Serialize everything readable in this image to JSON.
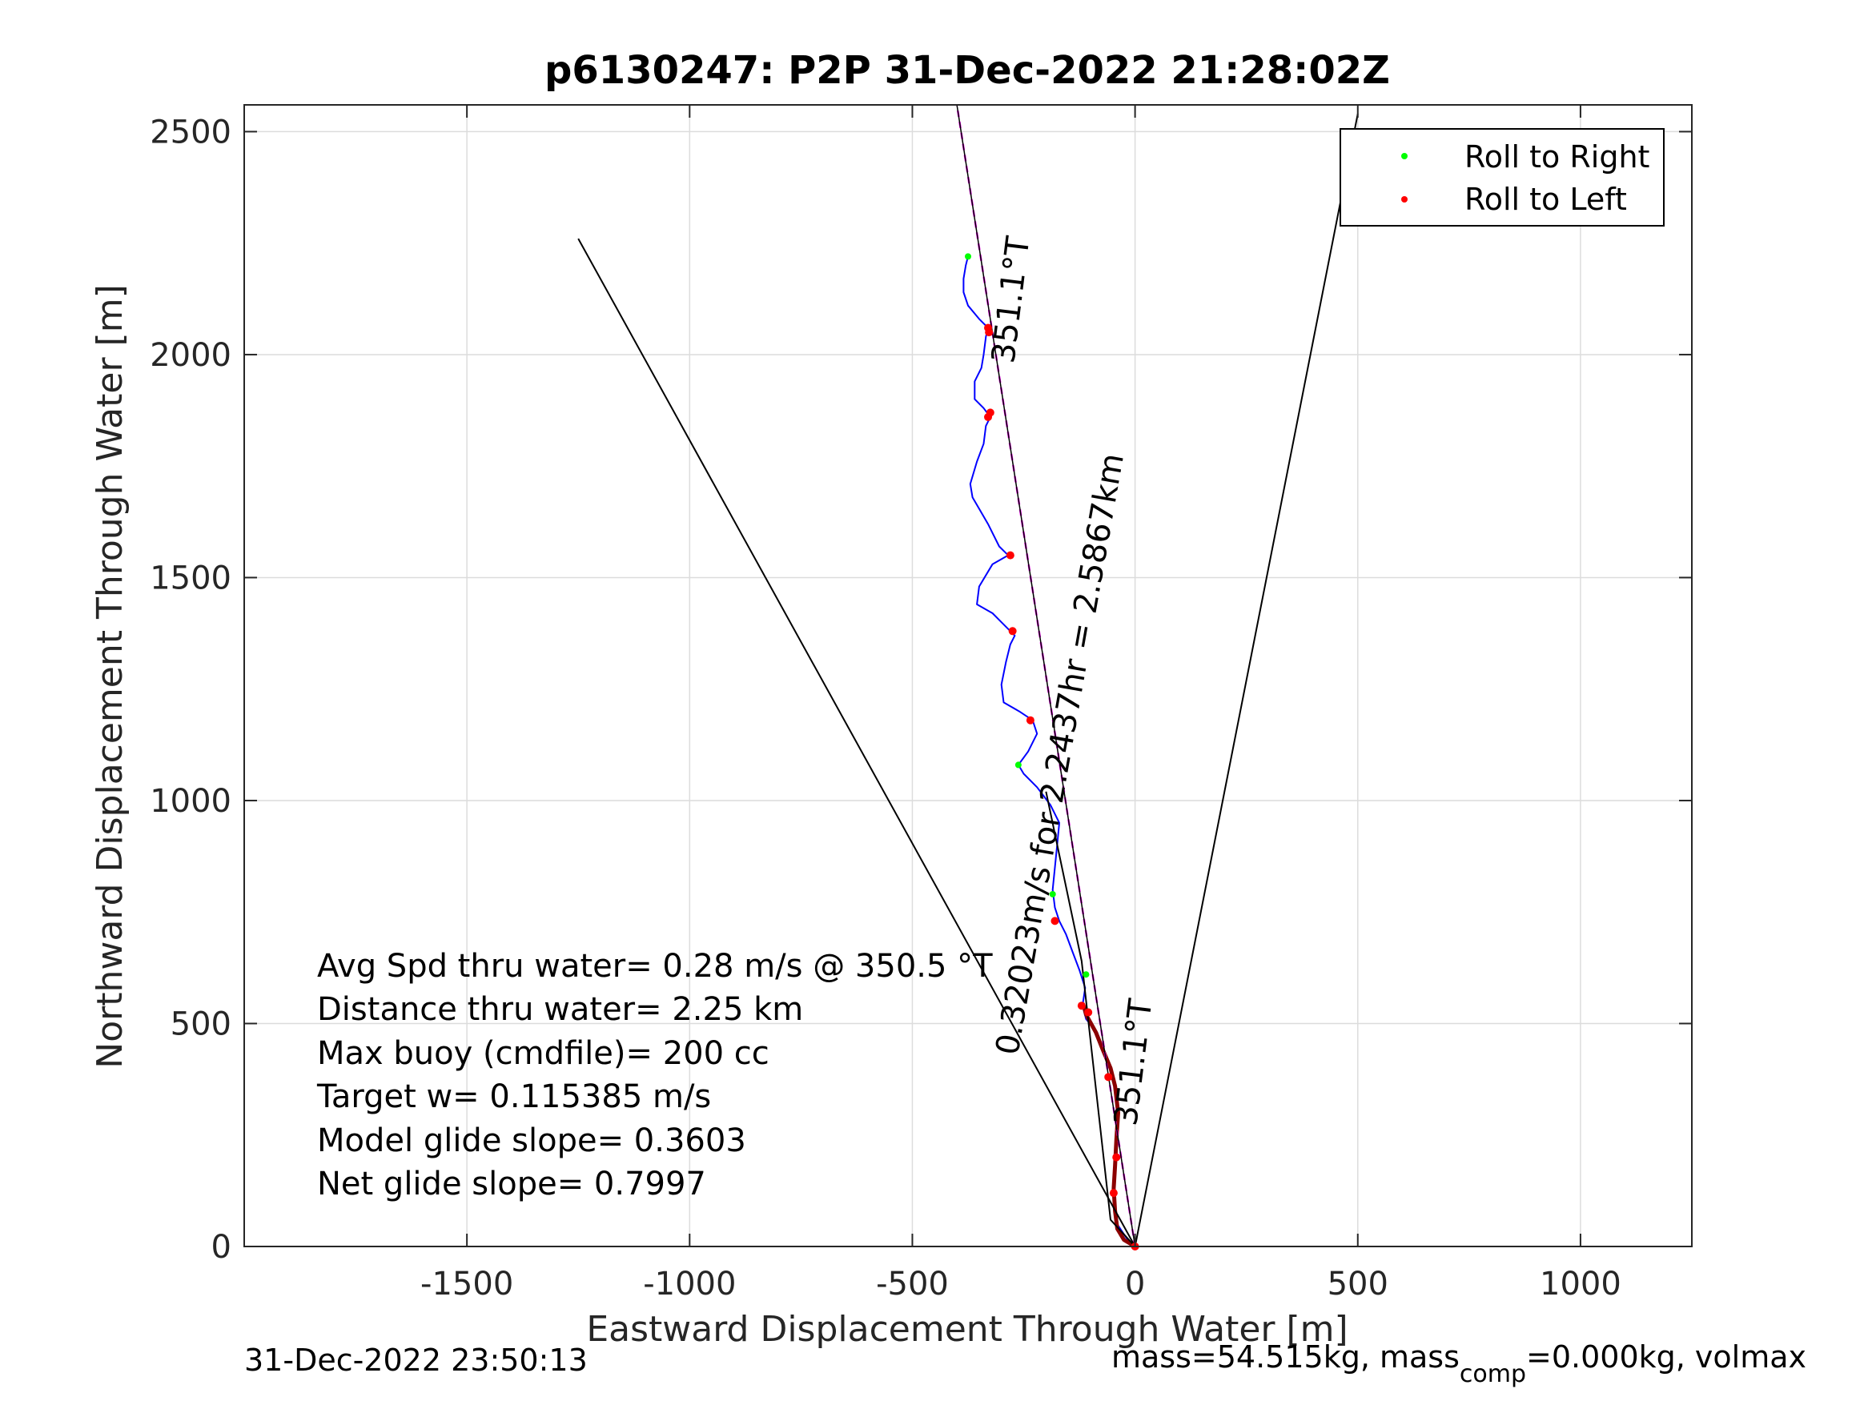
{
  "chart_data": {
    "type": "line",
    "title": "p6130247: P2P 31-Dec-2022 21:28:02Z",
    "xlabel": "Eastward Displacement Through Water [m]",
    "ylabel": "Northward Displacement Through Water [m]",
    "xlim": [
      -2000,
      1250
    ],
    "ylim": [
      0,
      2560
    ],
    "xticks": [
      -1500,
      -1000,
      -500,
      0,
      500,
      1000
    ],
    "yticks": [
      0,
      500,
      1000,
      1500,
      2000,
      2500
    ],
    "grid": true,
    "legend": {
      "placement": "top-right",
      "entries": [
        {
          "label": "Roll to Right",
          "color": "#00ff00"
        },
        {
          "label": "Roll to Left",
          "color": "#ff0000"
        }
      ]
    },
    "series": [
      {
        "name": "track",
        "color": "#0000ff",
        "points": [
          [
            0,
            0
          ],
          [
            -20,
            20
          ],
          [
            -40,
            50
          ],
          [
            -45,
            90
          ],
          [
            -48,
            140
          ],
          [
            -45,
            190
          ],
          [
            -42,
            240
          ],
          [
            -40,
            300
          ],
          [
            -45,
            360
          ],
          [
            -55,
            400
          ],
          [
            -70,
            440
          ],
          [
            -85,
            480
          ],
          [
            -110,
            510
          ],
          [
            -118,
            540
          ],
          [
            -112,
            580
          ],
          [
            -125,
            620
          ],
          [
            -140,
            660
          ],
          [
            -155,
            700
          ],
          [
            -170,
            730
          ],
          [
            -180,
            760
          ],
          [
            -185,
            800
          ],
          [
            -180,
            850
          ],
          [
            -175,
            900
          ],
          [
            -170,
            950
          ],
          [
            -190,
            990
          ],
          [
            -205,
            1010
          ],
          [
            -220,
            1030
          ],
          [
            -250,
            1060
          ],
          [
            -262,
            1080
          ],
          [
            -240,
            1110
          ],
          [
            -220,
            1150
          ],
          [
            -230,
            1180
          ],
          [
            -260,
            1200
          ],
          [
            -295,
            1220
          ],
          [
            -300,
            1260
          ],
          [
            -290,
            1310
          ],
          [
            -280,
            1350
          ],
          [
            -270,
            1370
          ],
          [
            -300,
            1400
          ],
          [
            -320,
            1420
          ],
          [
            -355,
            1440
          ],
          [
            -350,
            1480
          ],
          [
            -320,
            1530
          ],
          [
            -285,
            1550
          ],
          [
            -305,
            1570
          ],
          [
            -330,
            1620
          ],
          [
            -365,
            1680
          ],
          [
            -370,
            1710
          ],
          [
            -355,
            1760
          ],
          [
            -340,
            1800
          ],
          [
            -335,
            1840
          ],
          [
            -325,
            1860
          ],
          [
            -340,
            1880
          ],
          [
            -360,
            1900
          ],
          [
            -360,
            1940
          ],
          [
            -345,
            1970
          ],
          [
            -340,
            2000
          ],
          [
            -335,
            2040
          ],
          [
            -330,
            2060
          ],
          [
            -350,
            2080
          ],
          [
            -375,
            2110
          ],
          [
            -385,
            2140
          ],
          [
            -385,
            2170
          ],
          [
            -380,
            2200
          ],
          [
            -375,
            2220
          ]
        ]
      },
      {
        "name": "heavy-track",
        "color": "#8b0000",
        "points": [
          [
            0,
            0
          ],
          [
            -25,
            15
          ],
          [
            -40,
            40
          ],
          [
            -45,
            80
          ],
          [
            -48,
            130
          ],
          [
            -45,
            180
          ],
          [
            -42,
            240
          ],
          [
            -38,
            300
          ],
          [
            -45,
            360
          ],
          [
            -55,
            400
          ],
          [
            -72,
            440
          ],
          [
            -88,
            480
          ],
          [
            -110,
            520
          ],
          [
            -115,
            540
          ]
        ]
      },
      {
        "name": "heading-line",
        "color": "#ff00ff",
        "points": [
          [
            0,
            0
          ],
          [
            -400,
            2560
          ]
        ]
      },
      {
        "name": "bearing-line-1",
        "color": "#000000",
        "points": [
          [
            0,
            0
          ],
          [
            -400,
            2560
          ]
        ]
      },
      {
        "name": "cone-left",
        "color": "#000000",
        "points": [
          [
            0,
            0
          ],
          [
            -1250,
            2260
          ]
        ]
      },
      {
        "name": "cone-right",
        "color": "#000000",
        "points": [
          [
            0,
            0
          ],
          [
            500,
            2540
          ]
        ]
      },
      {
        "name": "glide-short",
        "color": "#000000",
        "points": [
          [
            0,
            0
          ],
          [
            -55,
            60
          ],
          [
            -120,
            640
          ],
          [
            -200,
            1020
          ]
        ]
      }
    ],
    "roll_right_points": [
      [
        -375,
        2220
      ],
      [
        -262,
        1080
      ],
      [
        -185,
        790
      ],
      [
        -110,
        610
      ]
    ],
    "roll_left_points": [
      [
        -330,
        2060
      ],
      [
        -328,
        2050
      ],
      [
        -325,
        1870
      ],
      [
        -330,
        1860
      ],
      [
        -280,
        1550
      ],
      [
        -275,
        1380
      ],
      [
        -235,
        1180
      ],
      [
        -180,
        730
      ],
      [
        -120,
        540
      ],
      [
        -105,
        525
      ],
      [
        -60,
        380
      ],
      [
        -48,
        120
      ],
      [
        -42,
        200
      ],
      [
        0,
        0
      ]
    ],
    "annotations": [
      {
        "text": "351.1°T",
        "x": -255,
        "y": 2120,
        "rotation": -83
      },
      {
        "text": "351.1°T",
        "x": 20,
        "y": 410,
        "rotation": -83
      },
      {
        "text": "0.32023m/s for 2.2437hr = 2.5867km",
        "x": -145,
        "y": 1100,
        "rotation": -80
      }
    ],
    "stats": [
      "Avg Spd thru water=  0.28 m/s @ 350.5 °T",
      "Distance thru water=  2.25 km",
      "Max buoy (cmdfile)= 200 cc",
      "Target w= 0.115385 m/s",
      "Model glide slope= 0.3603",
      "Net glide slope= 0.7997"
    ],
    "footer": {
      "timestamp": "31-Dec-2022 23:50:13",
      "mass_prefix": "mass=54.515kg, mass",
      "mass_sub": "comp",
      "mass_suffix": "=0.000kg, volmax"
    }
  }
}
